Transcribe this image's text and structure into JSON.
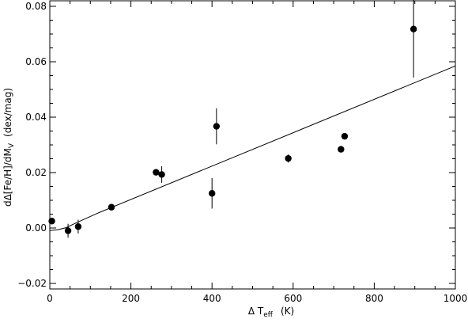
{
  "chart_data": {
    "type": "scatter",
    "xlabel": {
      "main": "Δ T",
      "sub": "eff",
      "units": "(K)"
    },
    "ylabel": {
      "main": "dΔ[Fe/H]/dM",
      "sub": "V",
      "units": "(dex/mag)"
    },
    "xlim": [
      0,
      1000
    ],
    "ylim": [
      -0.022,
      0.082
    ],
    "x_ticks": [
      0,
      200,
      400,
      600,
      800,
      1000
    ],
    "x_tick_labels": [
      "0",
      "200",
      "400",
      "600",
      "800",
      "1000"
    ],
    "y_ticks": [
      -0.02,
      0.0,
      0.02,
      0.04,
      0.06,
      0.08
    ],
    "y_tick_labels": [
      "−0.02",
      "0.00",
      "0.02",
      "0.04",
      "0.06",
      "0.08"
    ],
    "grid": false,
    "legend": "none",
    "series": [
      {
        "points": [
          {
            "x": 5,
            "y": 0.0025,
            "err": 0.0
          },
          {
            "x": 45,
            "y": -0.001,
            "err": 0.0025
          },
          {
            "x": 70,
            "y": 0.0005,
            "err": 0.0025
          },
          {
            "x": 152,
            "y": 0.0075,
            "err": 0.0
          },
          {
            "x": 262,
            "y": 0.0201,
            "err": 0.0
          },
          {
            "x": 276,
            "y": 0.0193,
            "err": 0.003
          },
          {
            "x": 400,
            "y": 0.0125,
            "err": 0.0055
          },
          {
            "x": 411,
            "y": 0.0367,
            "err": 0.0065
          },
          {
            "x": 588,
            "y": 0.0251,
            "err": 0.0015
          },
          {
            "x": 718,
            "y": 0.0284,
            "err": 0.0
          },
          {
            "x": 727,
            "y": 0.0331,
            "err": 0.0
          },
          {
            "x": 897,
            "y": 0.0718,
            "err": 0.0175
          }
        ]
      }
    ],
    "fit_line": [
      {
        "x": 0,
        "y": -0.0009
      },
      {
        "x": 20,
        "y": -0.0006
      },
      {
        "x": 40,
        "y": 0.0001
      },
      {
        "x": 70,
        "y": 0.0022
      },
      {
        "x": 120,
        "y": 0.0055
      },
      {
        "x": 1000,
        "y": 0.0585
      }
    ],
    "colors": {
      "marker": "#000000",
      "line": "#000000",
      "axis": "#000000",
      "background": "#ffffff"
    }
  }
}
